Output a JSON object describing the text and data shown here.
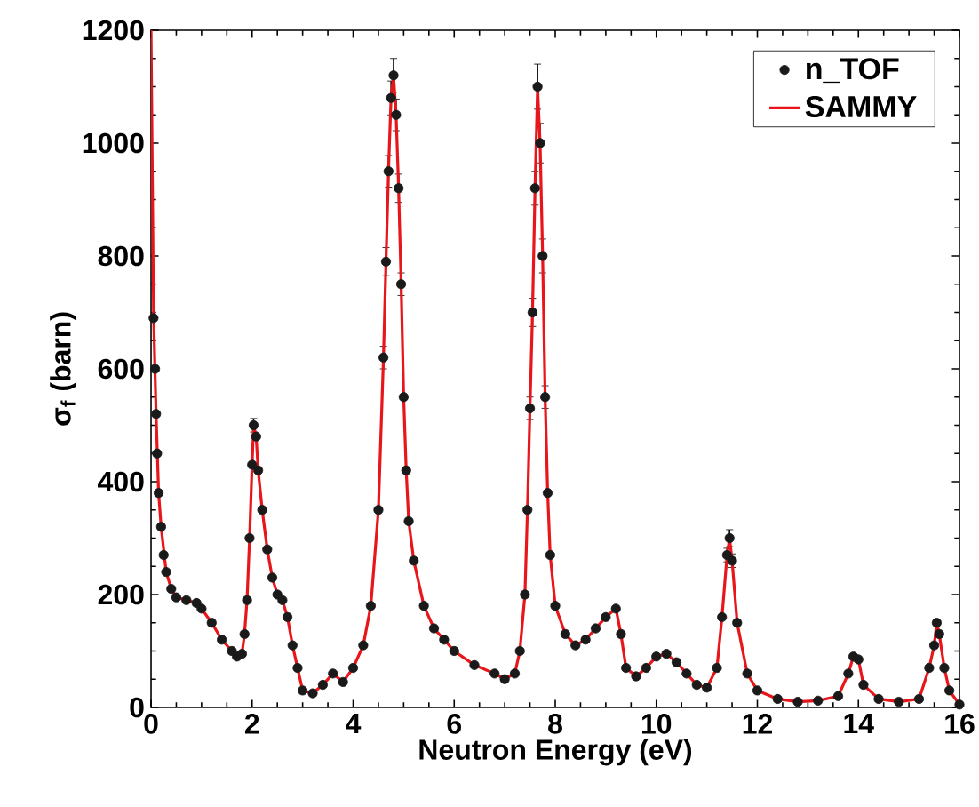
{
  "chart_data": {
    "type": "scatter",
    "xlabel": "Neutron Energy (eV)",
    "ylabel": "σ$_{f}$ (barn)",
    "xlim": [
      0,
      16
    ],
    "ylim": [
      0,
      1200
    ],
    "xticks": [
      0,
      2,
      4,
      6,
      8,
      10,
      12,
      14,
      16
    ],
    "yticks": [
      0,
      200,
      400,
      600,
      800,
      1000,
      1200
    ],
    "legend": "top right",
    "grid": false,
    "series": [
      {
        "name": "n_TOF",
        "marker": "circle",
        "color": "#1a1a1a",
        "x": [
          0.05,
          0.08,
          0.1,
          0.12,
          0.15,
          0.2,
          0.25,
          0.3,
          0.4,
          0.5,
          0.7,
          0.9,
          1.0,
          1.2,
          1.4,
          1.6,
          1.7,
          1.8,
          1.85,
          1.9,
          1.95,
          2.0,
          2.03,
          2.08,
          2.12,
          2.2,
          2.3,
          2.4,
          2.5,
          2.6,
          2.7,
          2.8,
          2.9,
          3.0,
          3.2,
          3.4,
          3.6,
          3.8,
          4.0,
          4.2,
          4.35,
          4.5,
          4.6,
          4.65,
          4.7,
          4.75,
          4.8,
          4.85,
          4.9,
          4.95,
          5.0,
          5.05,
          5.1,
          5.2,
          5.4,
          5.6,
          5.8,
          6.0,
          6.4,
          6.8,
          7.0,
          7.2,
          7.3,
          7.4,
          7.45,
          7.5,
          7.55,
          7.6,
          7.65,
          7.7,
          7.75,
          7.8,
          7.85,
          7.9,
          8.0,
          8.2,
          8.4,
          8.6,
          8.8,
          9.0,
          9.2,
          9.3,
          9.4,
          9.6,
          9.8,
          10.0,
          10.2,
          10.4,
          10.6,
          10.8,
          11.0,
          11.2,
          11.3,
          11.4,
          11.45,
          11.5,
          11.6,
          11.8,
          12.0,
          12.4,
          12.8,
          13.2,
          13.6,
          13.8,
          13.9,
          14.0,
          14.1,
          14.4,
          14.8,
          15.2,
          15.4,
          15.5,
          15.55,
          15.6,
          15.7,
          15.8,
          16.0
        ],
        "values": [
          690,
          600,
          520,
          450,
          380,
          320,
          270,
          240,
          210,
          195,
          190,
          185,
          175,
          150,
          120,
          100,
          90,
          95,
          130,
          190,
          300,
          430,
          500,
          480,
          420,
          350,
          280,
          230,
          200,
          190,
          160,
          110,
          70,
          30,
          25,
          40,
          60,
          45,
          70,
          110,
          180,
          350,
          620,
          790,
          950,
          1080,
          1120,
          1050,
          920,
          750,
          550,
          420,
          330,
          260,
          180,
          140,
          120,
          100,
          75,
          60,
          50,
          60,
          100,
          200,
          350,
          530,
          700,
          920,
          1100,
          1000,
          800,
          550,
          380,
          270,
          180,
          130,
          110,
          120,
          140,
          160,
          175,
          130,
          70,
          55,
          70,
          90,
          95,
          80,
          60,
          40,
          35,
          70,
          160,
          270,
          300,
          260,
          150,
          60,
          30,
          15,
          10,
          12,
          20,
          60,
          90,
          85,
          40,
          15,
          10,
          15,
          70,
          110,
          150,
          130,
          70,
          30,
          5
        ],
        "errors": [
          null,
          null,
          null,
          null,
          null,
          null,
          null,
          null,
          null,
          null,
          null,
          null,
          null,
          null,
          null,
          null,
          null,
          null,
          null,
          null,
          null,
          null,
          12,
          null,
          null,
          null,
          null,
          null,
          null,
          null,
          null,
          null,
          null,
          null,
          null,
          null,
          null,
          null,
          null,
          null,
          null,
          null,
          20,
          25,
          28,
          30,
          30,
          28,
          25,
          20,
          null,
          null,
          null,
          null,
          null,
          null,
          null,
          null,
          null,
          null,
          null,
          null,
          null,
          null,
          null,
          20,
          25,
          30,
          40,
          35,
          30,
          20,
          null,
          null,
          null,
          null,
          null,
          null,
          null,
          null,
          null,
          null,
          null,
          null,
          null,
          null,
          null,
          null,
          null,
          null,
          null,
          null,
          null,
          12,
          15,
          12,
          null,
          null,
          null,
          null,
          null,
          null,
          null,
          null,
          null,
          null,
          null,
          null,
          null,
          null,
          null,
          null,
          null,
          null,
          null,
          null,
          null
        ]
      },
      {
        "name": "SAMMY",
        "type": "line",
        "marker": "none",
        "color": "#e8161b",
        "x": [
          0.0,
          0.02,
          0.05,
          0.08,
          0.1,
          0.15,
          0.2,
          0.3,
          0.4,
          0.5,
          0.7,
          0.9,
          1.0,
          1.2,
          1.4,
          1.6,
          1.7,
          1.8,
          1.85,
          1.9,
          1.95,
          2.0,
          2.03,
          2.08,
          2.12,
          2.2,
          2.3,
          2.4,
          2.5,
          2.6,
          2.7,
          2.8,
          2.9,
          3.0,
          3.2,
          3.4,
          3.6,
          3.8,
          4.0,
          4.2,
          4.35,
          4.5,
          4.6,
          4.65,
          4.7,
          4.75,
          4.8,
          4.85,
          4.9,
          4.95,
          5.0,
          5.05,
          5.1,
          5.2,
          5.4,
          5.6,
          5.8,
          6.0,
          6.4,
          6.8,
          7.0,
          7.2,
          7.3,
          7.4,
          7.45,
          7.5,
          7.55,
          7.6,
          7.65,
          7.7,
          7.75,
          7.8,
          7.85,
          7.9,
          8.0,
          8.2,
          8.4,
          8.6,
          8.8,
          9.0,
          9.2,
          9.3,
          9.4,
          9.6,
          9.8,
          10.0,
          10.2,
          10.4,
          10.6,
          10.8,
          11.0,
          11.2,
          11.3,
          11.4,
          11.45,
          11.5,
          11.6,
          11.8,
          12.0,
          12.4,
          12.8,
          13.2,
          13.6,
          13.8,
          13.9,
          14.0,
          14.1,
          14.4,
          14.8,
          15.2,
          15.4,
          15.5,
          15.55,
          15.6,
          15.7,
          15.8,
          16.0
        ],
        "values": [
          1200,
          1000,
          700,
          590,
          520,
          380,
          320,
          240,
          210,
          195,
          190,
          185,
          175,
          150,
          120,
          100,
          90,
          95,
          130,
          190,
          300,
          430,
          500,
          480,
          420,
          350,
          280,
          230,
          200,
          190,
          160,
          110,
          70,
          30,
          25,
          40,
          60,
          45,
          70,
          110,
          180,
          350,
          620,
          790,
          950,
          1080,
          1120,
          1050,
          920,
          750,
          550,
          420,
          330,
          260,
          180,
          140,
          120,
          100,
          75,
          60,
          50,
          60,
          100,
          200,
          350,
          530,
          700,
          920,
          1100,
          1000,
          800,
          550,
          380,
          270,
          180,
          130,
          110,
          120,
          140,
          160,
          175,
          130,
          70,
          55,
          70,
          90,
          95,
          80,
          60,
          40,
          35,
          70,
          160,
          270,
          300,
          260,
          150,
          60,
          30,
          15,
          10,
          12,
          20,
          60,
          90,
          85,
          40,
          15,
          10,
          15,
          70,
          110,
          150,
          130,
          70,
          30,
          5
        ]
      }
    ]
  }
}
